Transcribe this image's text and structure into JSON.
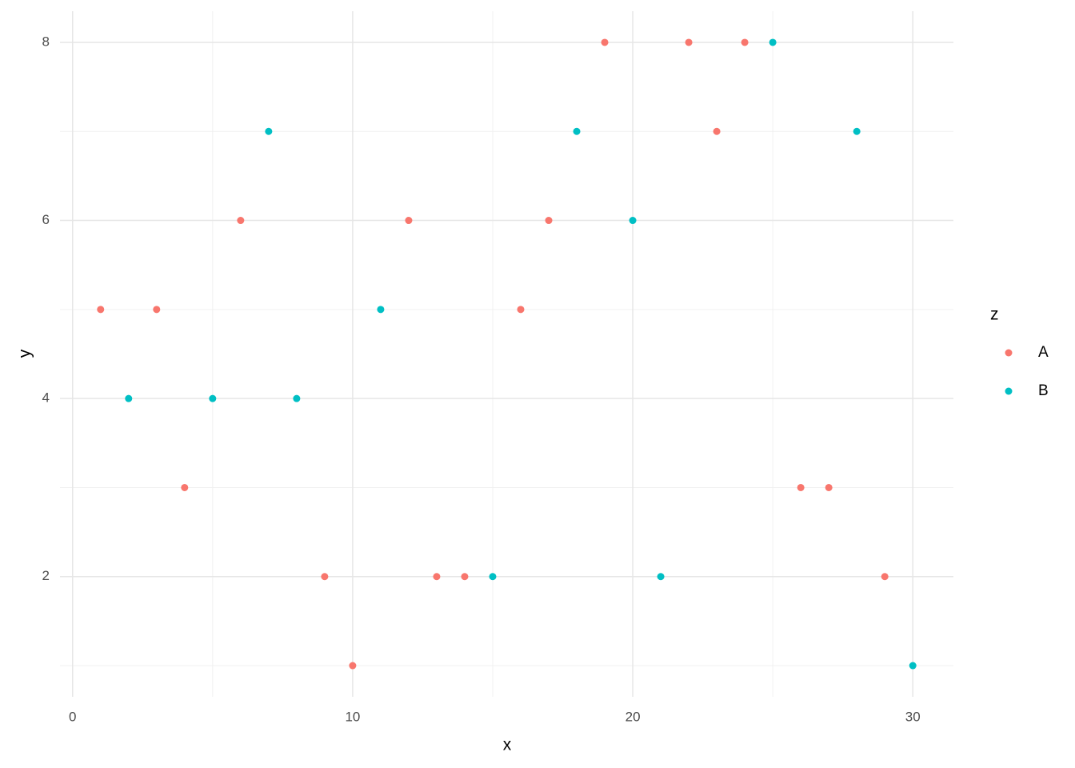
{
  "chart_data": {
    "type": "scatter",
    "x_label": "x",
    "y_label": "y",
    "legend_title": "z",
    "legend_position": "right",
    "series": [
      {
        "name": "A",
        "color": "#F8766D",
        "x": [
          1,
          3,
          4,
          6,
          9,
          10,
          12,
          13,
          14,
          16,
          17,
          19,
          22,
          23,
          24,
          26,
          27,
          29
        ],
        "values": [
          5,
          5,
          3,
          6,
          2,
          1,
          6,
          2,
          2,
          5,
          6,
          8,
          8,
          7,
          8,
          3,
          3,
          2
        ]
      },
      {
        "name": "B",
        "color": "#00BFC4",
        "x": [
          2,
          5,
          7,
          8,
          11,
          15,
          18,
          20,
          21,
          25,
          28,
          30
        ],
        "values": [
          4,
          4,
          7,
          4,
          5,
          2,
          7,
          6,
          2,
          8,
          7,
          1
        ]
      }
    ],
    "xlim": [
      -0.45,
      31.45
    ],
    "ylim": [
      0.65,
      8.35
    ],
    "xticks": [
      0,
      10,
      20,
      30
    ],
    "yticks": [
      2,
      4,
      6,
      8
    ],
    "x_minor_ticks": [
      5,
      15,
      25
    ],
    "y_minor_ticks": [
      1,
      3,
      5,
      7
    ],
    "grid": true
  }
}
